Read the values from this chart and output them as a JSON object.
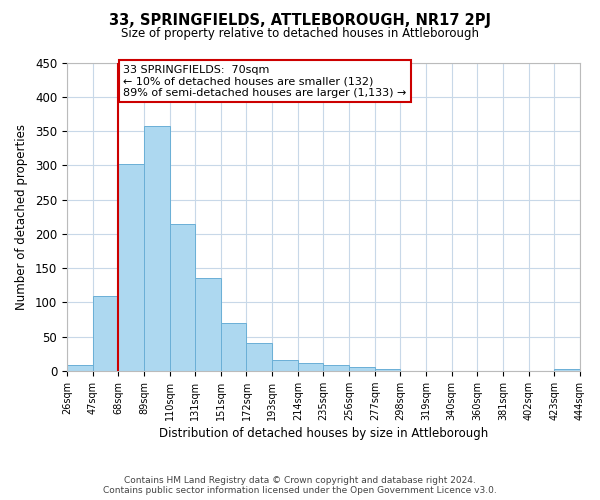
{
  "title": "33, SPRINGFIELDS, ATTLEBOROUGH, NR17 2PJ",
  "subtitle": "Size of property relative to detached houses in Attleborough",
  "xlabel": "Distribution of detached houses by size in Attleborough",
  "ylabel": "Number of detached properties",
  "bar_values": [
    9,
    109,
    302,
    358,
    214,
    135,
    70,
    40,
    16,
    12,
    9,
    5,
    2,
    0,
    0,
    0,
    0,
    0,
    0,
    2
  ],
  "bar_labels": [
    "26sqm",
    "47sqm",
    "68sqm",
    "89sqm",
    "110sqm",
    "131sqm",
    "151sqm",
    "172sqm",
    "193sqm",
    "214sqm",
    "235sqm",
    "256sqm",
    "277sqm",
    "298sqm",
    "319sqm",
    "340sqm",
    "360sqm",
    "381sqm",
    "402sqm",
    "423sqm",
    "444sqm"
  ],
  "bar_color": "#add8f0",
  "bar_edge_color": "#6aafd6",
  "vline_x_index": 2,
  "vline_color": "#cc0000",
  "box_text_line1": "33 SPRINGFIELDS:  70sqm",
  "box_text_line2": "← 10% of detached houses are smaller (132)",
  "box_text_line3": "89% of semi-detached houses are larger (1,133) →",
  "box_color": "#cc0000",
  "ylim": [
    0,
    450
  ],
  "yticks": [
    0,
    50,
    100,
    150,
    200,
    250,
    300,
    350,
    400,
    450
  ],
  "footer_line1": "Contains HM Land Registry data © Crown copyright and database right 2024.",
  "footer_line2": "Contains public sector information licensed under the Open Government Licence v3.0.",
  "bg_color": "#ffffff",
  "grid_color": "#c8d8e8"
}
